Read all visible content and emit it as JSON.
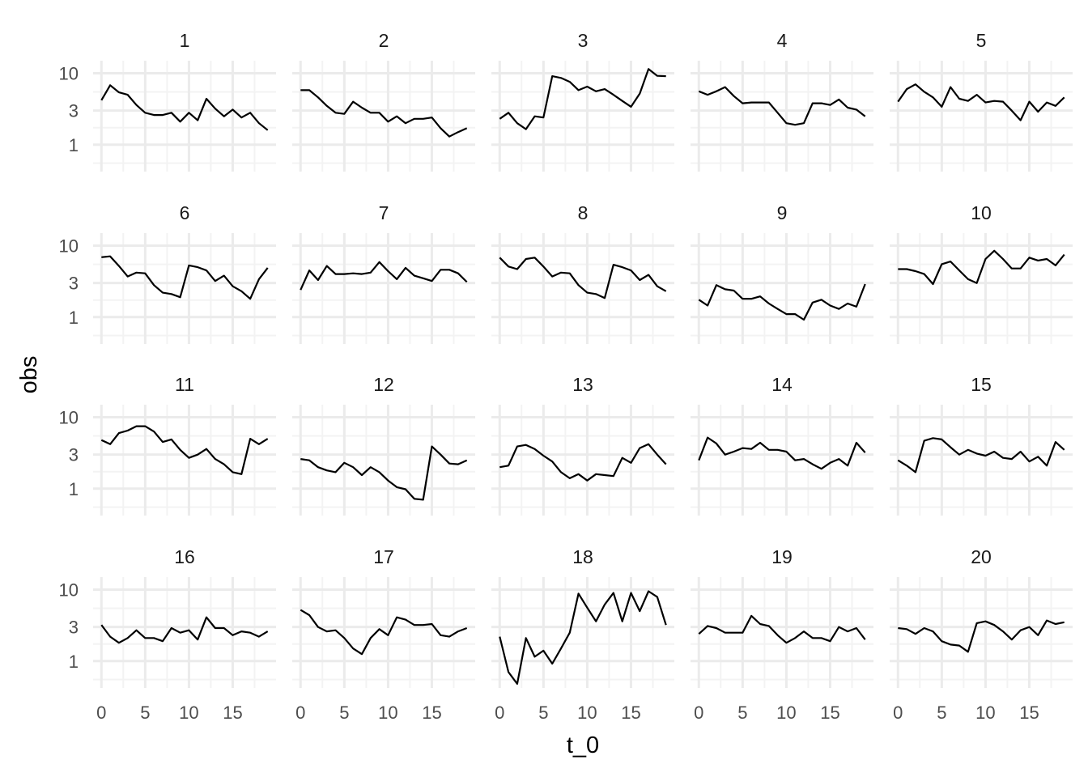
{
  "chart_data": {
    "type": "line",
    "xlabel": "t_0",
    "ylabel": "obs",
    "y_scale": "log10",
    "ylim": [
      0.42,
      15
    ],
    "xlim": [
      -0.95,
      19.95
    ],
    "y_ticks": [
      1,
      3,
      10
    ],
    "y_tick_labels": [
      "1",
      "3",
      "10"
    ],
    "x_ticks": [
      0,
      5,
      10,
      15
    ],
    "x_tick_labels": [
      "0",
      "5",
      "10",
      "15"
    ],
    "grid": true,
    "facets": {
      "ncol": 5,
      "nrow": 4
    },
    "colors": {
      "line": "#000000",
      "grid_major": "#ebebeb",
      "grid_minor": "#f3f3f3",
      "background": "#ffffff"
    },
    "series": [
      {
        "name": "1",
        "x": [
          0,
          1,
          2,
          3,
          4,
          5,
          6,
          7,
          8,
          9,
          10,
          11,
          12,
          13,
          14,
          15,
          16,
          17,
          18,
          19
        ],
        "y": [
          4.2,
          6.8,
          5.4,
          5.0,
          3.6,
          2.8,
          2.6,
          2.6,
          2.8,
          2.1,
          2.8,
          2.2,
          4.4,
          3.2,
          2.5,
          3.1,
          2.4,
          2.8,
          2.0,
          1.6
        ]
      },
      {
        "name": "2",
        "x": [
          0,
          1,
          2,
          3,
          4,
          5,
          6,
          7,
          8,
          9,
          10,
          11,
          12,
          13,
          14,
          15,
          16,
          17,
          18,
          19
        ],
        "y": [
          5.8,
          5.8,
          4.6,
          3.5,
          2.8,
          2.7,
          4.0,
          3.3,
          2.8,
          2.8,
          2.1,
          2.5,
          2.0,
          2.3,
          2.3,
          2.4,
          1.7,
          1.3,
          1.5,
          1.7
        ]
      },
      {
        "name": "3",
        "x": [
          0,
          1,
          2,
          3,
          4,
          5,
          6,
          7,
          8,
          9,
          10,
          11,
          12,
          13,
          14,
          15,
          16,
          17,
          18,
          19
        ],
        "y": [
          2.3,
          2.8,
          2.0,
          1.65,
          2.5,
          2.4,
          9.1,
          8.6,
          7.6,
          5.8,
          6.5,
          5.6,
          6.0,
          5.0,
          4.1,
          3.4,
          5.2,
          11.5,
          9.2,
          9.1
        ]
      },
      {
        "name": "4",
        "x": [
          0,
          1,
          2,
          3,
          4,
          5,
          6,
          7,
          8,
          9,
          10,
          11,
          12,
          13,
          14,
          15,
          16,
          17,
          18,
          19
        ],
        "y": [
          5.6,
          5.0,
          5.6,
          6.4,
          4.8,
          3.8,
          3.9,
          3.9,
          3.9,
          2.8,
          2.0,
          1.9,
          2.0,
          3.8,
          3.8,
          3.6,
          4.3,
          3.3,
          3.1,
          2.5
        ]
      },
      {
        "name": "5",
        "x": [
          0,
          1,
          2,
          3,
          4,
          5,
          6,
          7,
          8,
          9,
          10,
          11,
          12,
          13,
          14,
          15,
          16,
          17,
          18,
          19
        ],
        "y": [
          4.0,
          6.0,
          7.0,
          5.5,
          4.6,
          3.4,
          6.4,
          4.4,
          4.1,
          5.0,
          3.9,
          4.1,
          4.0,
          3.0,
          2.2,
          4.0,
          2.9,
          3.9,
          3.5,
          4.6
        ]
      },
      {
        "name": "6",
        "x": [
          0,
          1,
          2,
          3,
          4,
          5,
          6,
          7,
          8,
          9,
          10,
          11,
          12,
          13,
          14,
          15,
          16,
          17,
          18,
          19
        ],
        "y": [
          6.9,
          7.1,
          5.2,
          3.7,
          4.2,
          4.1,
          2.8,
          2.2,
          2.1,
          1.9,
          5.3,
          5.0,
          4.5,
          3.2,
          3.8,
          2.7,
          2.3,
          1.8,
          3.4,
          4.9
        ]
      },
      {
        "name": "7",
        "x": [
          0,
          1,
          2,
          3,
          4,
          5,
          6,
          7,
          8,
          9,
          10,
          11,
          12,
          13,
          14,
          15,
          16,
          17,
          18,
          19
        ],
        "y": [
          2.4,
          4.5,
          3.3,
          5.2,
          4.0,
          4.0,
          4.1,
          4.0,
          4.2,
          5.9,
          4.4,
          3.4,
          4.9,
          3.8,
          3.5,
          3.2,
          4.6,
          4.6,
          4.1,
          3.1
        ]
      },
      {
        "name": "8",
        "x": [
          0,
          1,
          2,
          3,
          4,
          5,
          6,
          7,
          8,
          9,
          10,
          11,
          12,
          13,
          14,
          15,
          16,
          17,
          18,
          19
        ],
        "y": [
          6.8,
          5.1,
          4.7,
          6.5,
          6.8,
          5.1,
          3.7,
          4.2,
          4.1,
          2.8,
          2.2,
          2.1,
          1.85,
          5.4,
          5.0,
          4.5,
          3.3,
          3.9,
          2.7,
          2.3
        ]
      },
      {
        "name": "9",
        "x": [
          0,
          1,
          2,
          3,
          4,
          5,
          6,
          7,
          8,
          9,
          10,
          11,
          12,
          13,
          14,
          15,
          16,
          17,
          18,
          19
        ],
        "y": [
          1.75,
          1.45,
          2.8,
          2.45,
          2.35,
          1.8,
          1.8,
          1.95,
          1.55,
          1.3,
          1.1,
          1.1,
          0.92,
          1.6,
          1.75,
          1.45,
          1.3,
          1.55,
          1.4,
          2.9
        ]
      },
      {
        "name": "10",
        "x": [
          0,
          1,
          2,
          3,
          4,
          5,
          6,
          7,
          8,
          9,
          10,
          11,
          12,
          13,
          14,
          15,
          16,
          17,
          18,
          19
        ],
        "y": [
          4.7,
          4.7,
          4.4,
          4.0,
          2.9,
          5.5,
          6.0,
          4.5,
          3.4,
          3.0,
          6.5,
          8.5,
          6.5,
          4.8,
          4.8,
          6.8,
          6.2,
          6.5,
          5.3,
          7.5
        ]
      },
      {
        "name": "11",
        "x": [
          0,
          1,
          2,
          3,
          4,
          5,
          6,
          7,
          8,
          9,
          10,
          11,
          12,
          13,
          14,
          15,
          16,
          17,
          18,
          19
        ],
        "y": [
          4.8,
          4.2,
          6.0,
          6.5,
          7.5,
          7.5,
          6.3,
          4.5,
          4.9,
          3.5,
          2.7,
          3.0,
          3.6,
          2.6,
          2.2,
          1.7,
          1.6,
          5.0,
          4.2,
          5.0
        ]
      },
      {
        "name": "12",
        "x": [
          0,
          1,
          2,
          3,
          4,
          5,
          6,
          7,
          8,
          9,
          10,
          11,
          12,
          13,
          14,
          15,
          16,
          17,
          18,
          19
        ],
        "y": [
          2.6,
          2.5,
          2.0,
          1.8,
          1.7,
          2.3,
          2.0,
          1.55,
          2.0,
          1.7,
          1.3,
          1.05,
          0.98,
          0.72,
          0.7,
          3.9,
          3.0,
          2.25,
          2.2,
          2.5
        ]
      },
      {
        "name": "13",
        "x": [
          0,
          1,
          2,
          3,
          4,
          5,
          6,
          7,
          8,
          9,
          10,
          11,
          12,
          13,
          14,
          15,
          16,
          17,
          18,
          19
        ],
        "y": [
          2.0,
          2.1,
          3.9,
          4.1,
          3.6,
          2.9,
          2.4,
          1.7,
          1.4,
          1.6,
          1.3,
          1.6,
          1.55,
          1.5,
          2.7,
          2.3,
          3.7,
          4.2,
          3.0,
          2.2
        ]
      },
      {
        "name": "14",
        "x": [
          0,
          1,
          2,
          3,
          4,
          5,
          6,
          7,
          8,
          9,
          10,
          11,
          12,
          13,
          14,
          15,
          16,
          17,
          18,
          19
        ],
        "y": [
          2.5,
          5.2,
          4.3,
          3.0,
          3.3,
          3.7,
          3.6,
          4.4,
          3.5,
          3.5,
          3.3,
          2.5,
          2.6,
          2.2,
          1.9,
          2.3,
          2.6,
          2.1,
          4.4,
          3.2
        ]
      },
      {
        "name": "15",
        "x": [
          0,
          1,
          2,
          3,
          4,
          5,
          6,
          7,
          8,
          9,
          10,
          11,
          12,
          13,
          14,
          15,
          16,
          17,
          18,
          19
        ],
        "y": [
          2.5,
          2.1,
          1.7,
          4.7,
          5.1,
          4.9,
          3.8,
          3.0,
          3.5,
          3.1,
          2.9,
          3.3,
          2.7,
          2.6,
          3.3,
          2.4,
          2.8,
          2.1,
          4.5,
          3.5
        ]
      },
      {
        "name": "16",
        "x": [
          0,
          1,
          2,
          3,
          4,
          5,
          6,
          7,
          8,
          9,
          10,
          11,
          12,
          13,
          14,
          15,
          16,
          17,
          18,
          19
        ],
        "y": [
          3.2,
          2.2,
          1.8,
          2.1,
          2.7,
          2.1,
          2.1,
          1.9,
          2.9,
          2.5,
          2.7,
          2.0,
          4.1,
          2.9,
          2.9,
          2.3,
          2.6,
          2.5,
          2.2,
          2.6
        ]
      },
      {
        "name": "17",
        "x": [
          0,
          1,
          2,
          3,
          4,
          5,
          6,
          7,
          8,
          9,
          10,
          11,
          12,
          13,
          14,
          15,
          16,
          17,
          18,
          19
        ],
        "y": [
          5.2,
          4.4,
          3.0,
          2.6,
          2.7,
          2.1,
          1.5,
          1.25,
          2.1,
          2.8,
          2.3,
          4.1,
          3.8,
          3.2,
          3.2,
          3.3,
          2.3,
          2.2,
          2.6,
          2.9
        ]
      },
      {
        "name": "18",
        "x": [
          0,
          1,
          2,
          3,
          4,
          5,
          6,
          7,
          8,
          9,
          10,
          11,
          12,
          13,
          14,
          15,
          16,
          17,
          18,
          19
        ],
        "y": [
          2.2,
          0.7,
          0.48,
          2.1,
          1.15,
          1.4,
          0.92,
          1.5,
          2.5,
          8.8,
          5.6,
          3.6,
          6.2,
          9.0,
          3.6,
          9.0,
          5.0,
          9.5,
          7.9,
          3.2
        ]
      },
      {
        "name": "19",
        "x": [
          0,
          1,
          2,
          3,
          4,
          5,
          6,
          7,
          8,
          9,
          10,
          11,
          12,
          13,
          14,
          15,
          16,
          17,
          18,
          19
        ],
        "y": [
          2.4,
          3.1,
          2.9,
          2.5,
          2.5,
          2.5,
          4.3,
          3.3,
          3.1,
          2.3,
          1.8,
          2.1,
          2.6,
          2.1,
          2.1,
          1.9,
          3.0,
          2.6,
          2.9,
          2.0
        ]
      },
      {
        "name": "20",
        "x": [
          0,
          1,
          2,
          3,
          4,
          5,
          6,
          7,
          8,
          9,
          10,
          11,
          12,
          13,
          14,
          15,
          16,
          17,
          18,
          19
        ],
        "y": [
          2.9,
          2.8,
          2.4,
          2.9,
          2.6,
          1.9,
          1.7,
          1.65,
          1.35,
          3.4,
          3.6,
          3.2,
          2.6,
          2.0,
          2.7,
          3.0,
          2.3,
          3.7,
          3.3,
          3.5
        ]
      }
    ]
  }
}
